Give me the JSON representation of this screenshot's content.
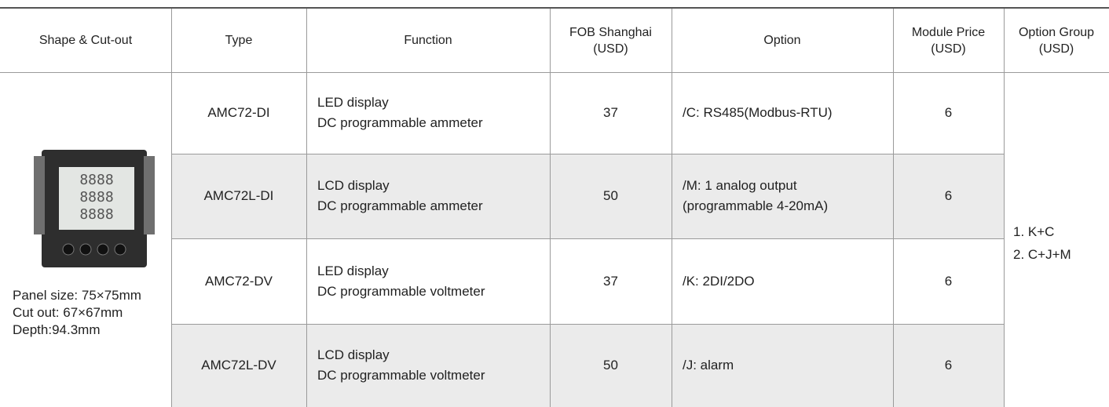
{
  "header": [
    "Shape & Cut-out",
    "Type",
    "Function",
    [
      "FOB Shanghai",
      "(USD)"
    ],
    "Option",
    [
      "Module Price",
      "(USD)"
    ],
    [
      "Option Group",
      "(USD)"
    ]
  ],
  "shape": [
    "Panel size: 75×75mm",
    "Cut out: 67×67mm",
    "Depth:94.3mm"
  ],
  "rows": [
    {
      "type": "AMC72-DI",
      "function": [
        "LED display",
        "DC programmable ammeter"
      ],
      "fob": 37,
      "option": [
        "/C: RS485(Modbus-RTU)"
      ],
      "module_price": 6
    },
    {
      "type": "AMC72L-DI",
      "function": [
        "LCD display",
        "DC programmable ammeter"
      ],
      "fob": 50,
      "option": [
        "/M: 1 analog output",
        "(programmable 4-20mA)"
      ],
      "module_price": 6
    },
    {
      "type": "AMC72-DV",
      "function": [
        "LED display",
        "DC programmable voltmeter"
      ],
      "fob": 37,
      "option": [
        "/K: 2DI/2DO"
      ],
      "module_price": 6
    },
    {
      "type": "AMC72L-DV",
      "function": [
        "LCD display",
        "DC programmable voltmeter"
      ],
      "fob": 50,
      "option": [
        "/J: alarm"
      ],
      "module_price": 6
    }
  ],
  "option_group": [
    "1. K+C",
    "2. C+J+M"
  ]
}
